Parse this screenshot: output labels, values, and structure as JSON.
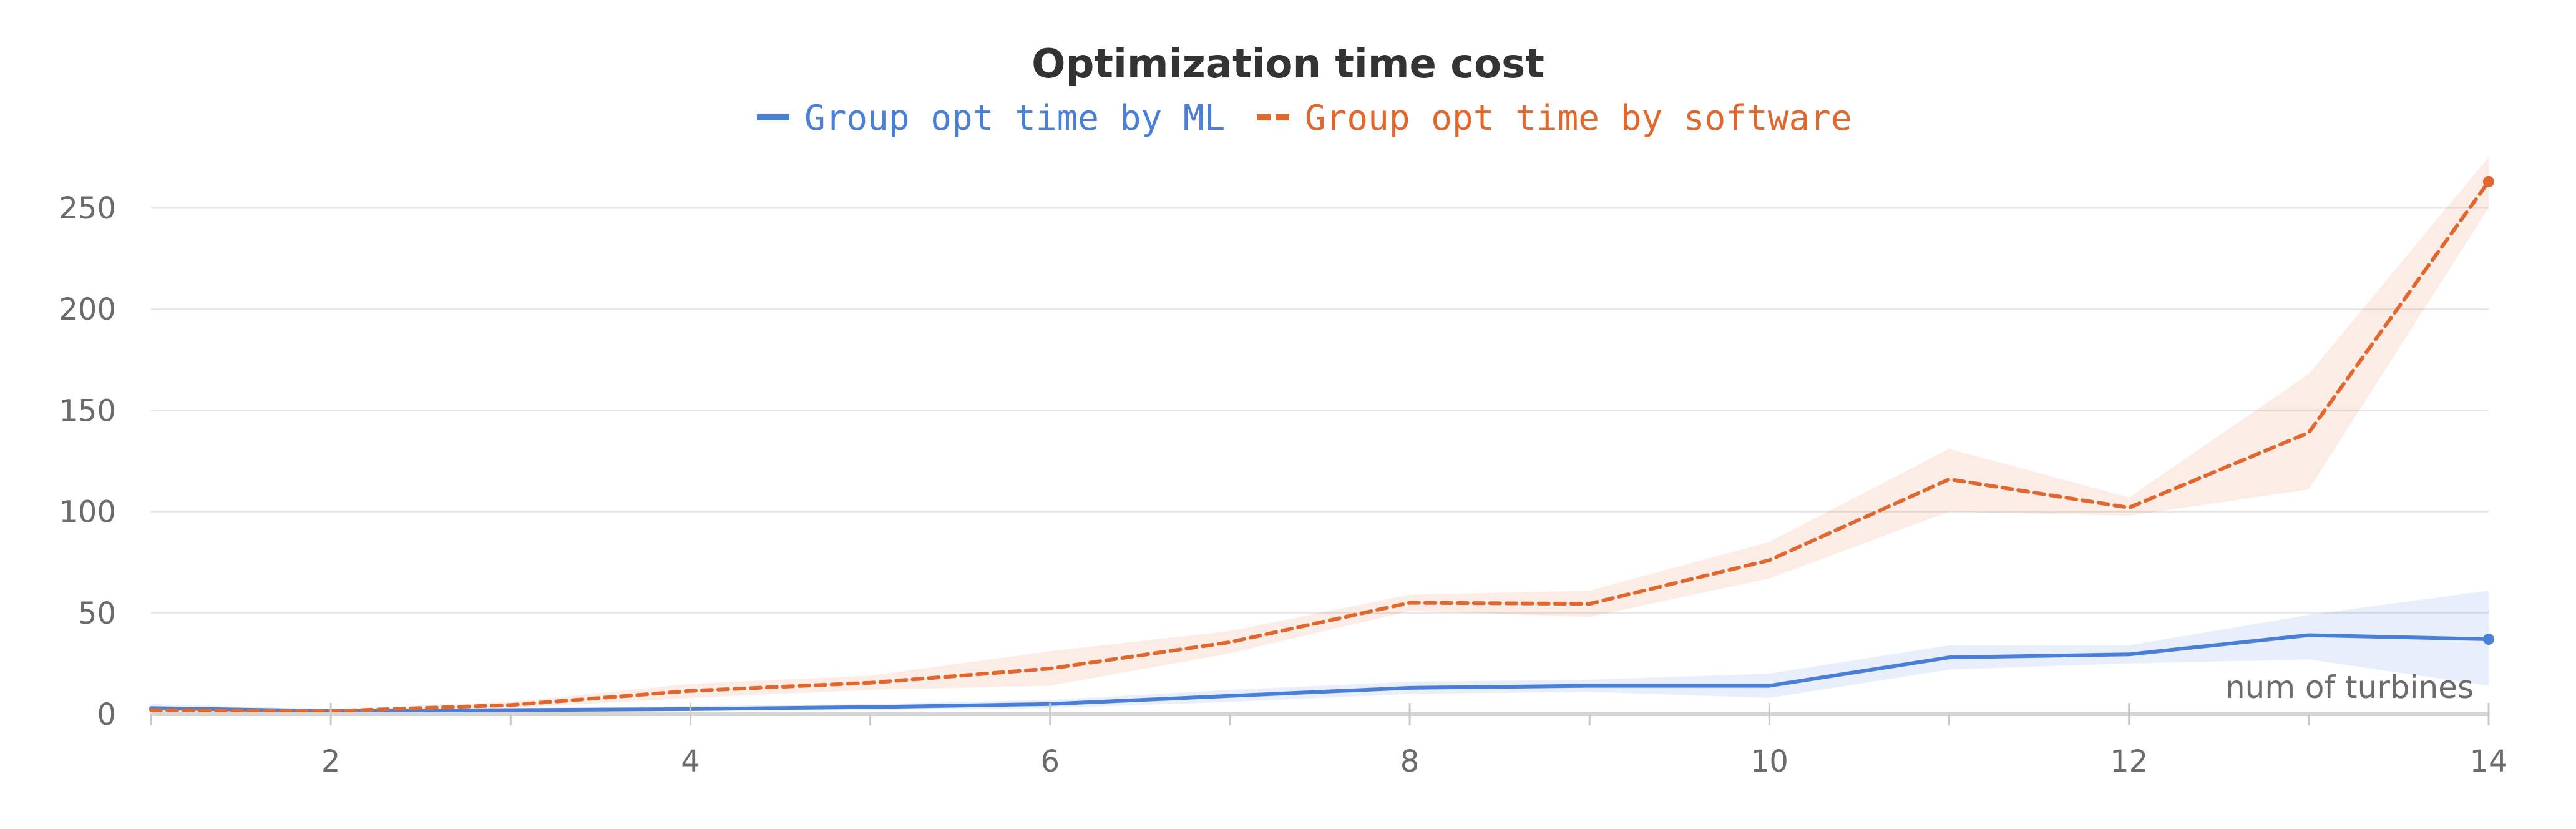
{
  "chart_data": {
    "type": "line",
    "title": "Optimization time cost",
    "xlabel": "num of turbines",
    "ylabel": "",
    "x": [
      1,
      2,
      3,
      4,
      5,
      6,
      7,
      8,
      9,
      10,
      11,
      12,
      13,
      14
    ],
    "xlim": [
      1,
      14
    ],
    "ylim": [
      0,
      270
    ],
    "x_ticks": [
      2,
      4,
      6,
      8,
      10,
      12,
      14
    ],
    "y_ticks": [
      0,
      50,
      100,
      150,
      200,
      250
    ],
    "grid": "horizontal",
    "legend_position": "top-center",
    "series": [
      {
        "name": "Group opt time by ML",
        "color": "#4a7fd8",
        "line_style": "solid",
        "values": [
          3,
          1.5,
          2,
          2.5,
          3.5,
          5,
          9,
          13,
          14,
          14,
          28,
          29.5,
          39,
          37
        ],
        "band_lower": [
          1,
          0.5,
          1,
          1.5,
          2,
          3,
          6,
          10,
          11,
          8,
          22,
          25,
          27,
          14
        ],
        "band_upper": [
          5,
          2.5,
          3,
          4,
          5,
          7,
          12,
          16,
          17,
          20,
          34,
          34,
          49,
          61
        ]
      },
      {
        "name": "Group opt time by software",
        "color": "#e0672e",
        "line_style": "dashed",
        "values": [
          2,
          1.5,
          4.5,
          11.5,
          15.5,
          22.5,
          35.5,
          55,
          54.5,
          76,
          116,
          102,
          139,
          263
        ],
        "band_lower": [
          1,
          0.5,
          3,
          8,
          12,
          14,
          30,
          51,
          48,
          67,
          100,
          98,
          111,
          250
        ],
        "band_upper": [
          3,
          2.5,
          6,
          15,
          19,
          31,
          41,
          59,
          61,
          85,
          131,
          107,
          168,
          275
        ]
      }
    ]
  }
}
